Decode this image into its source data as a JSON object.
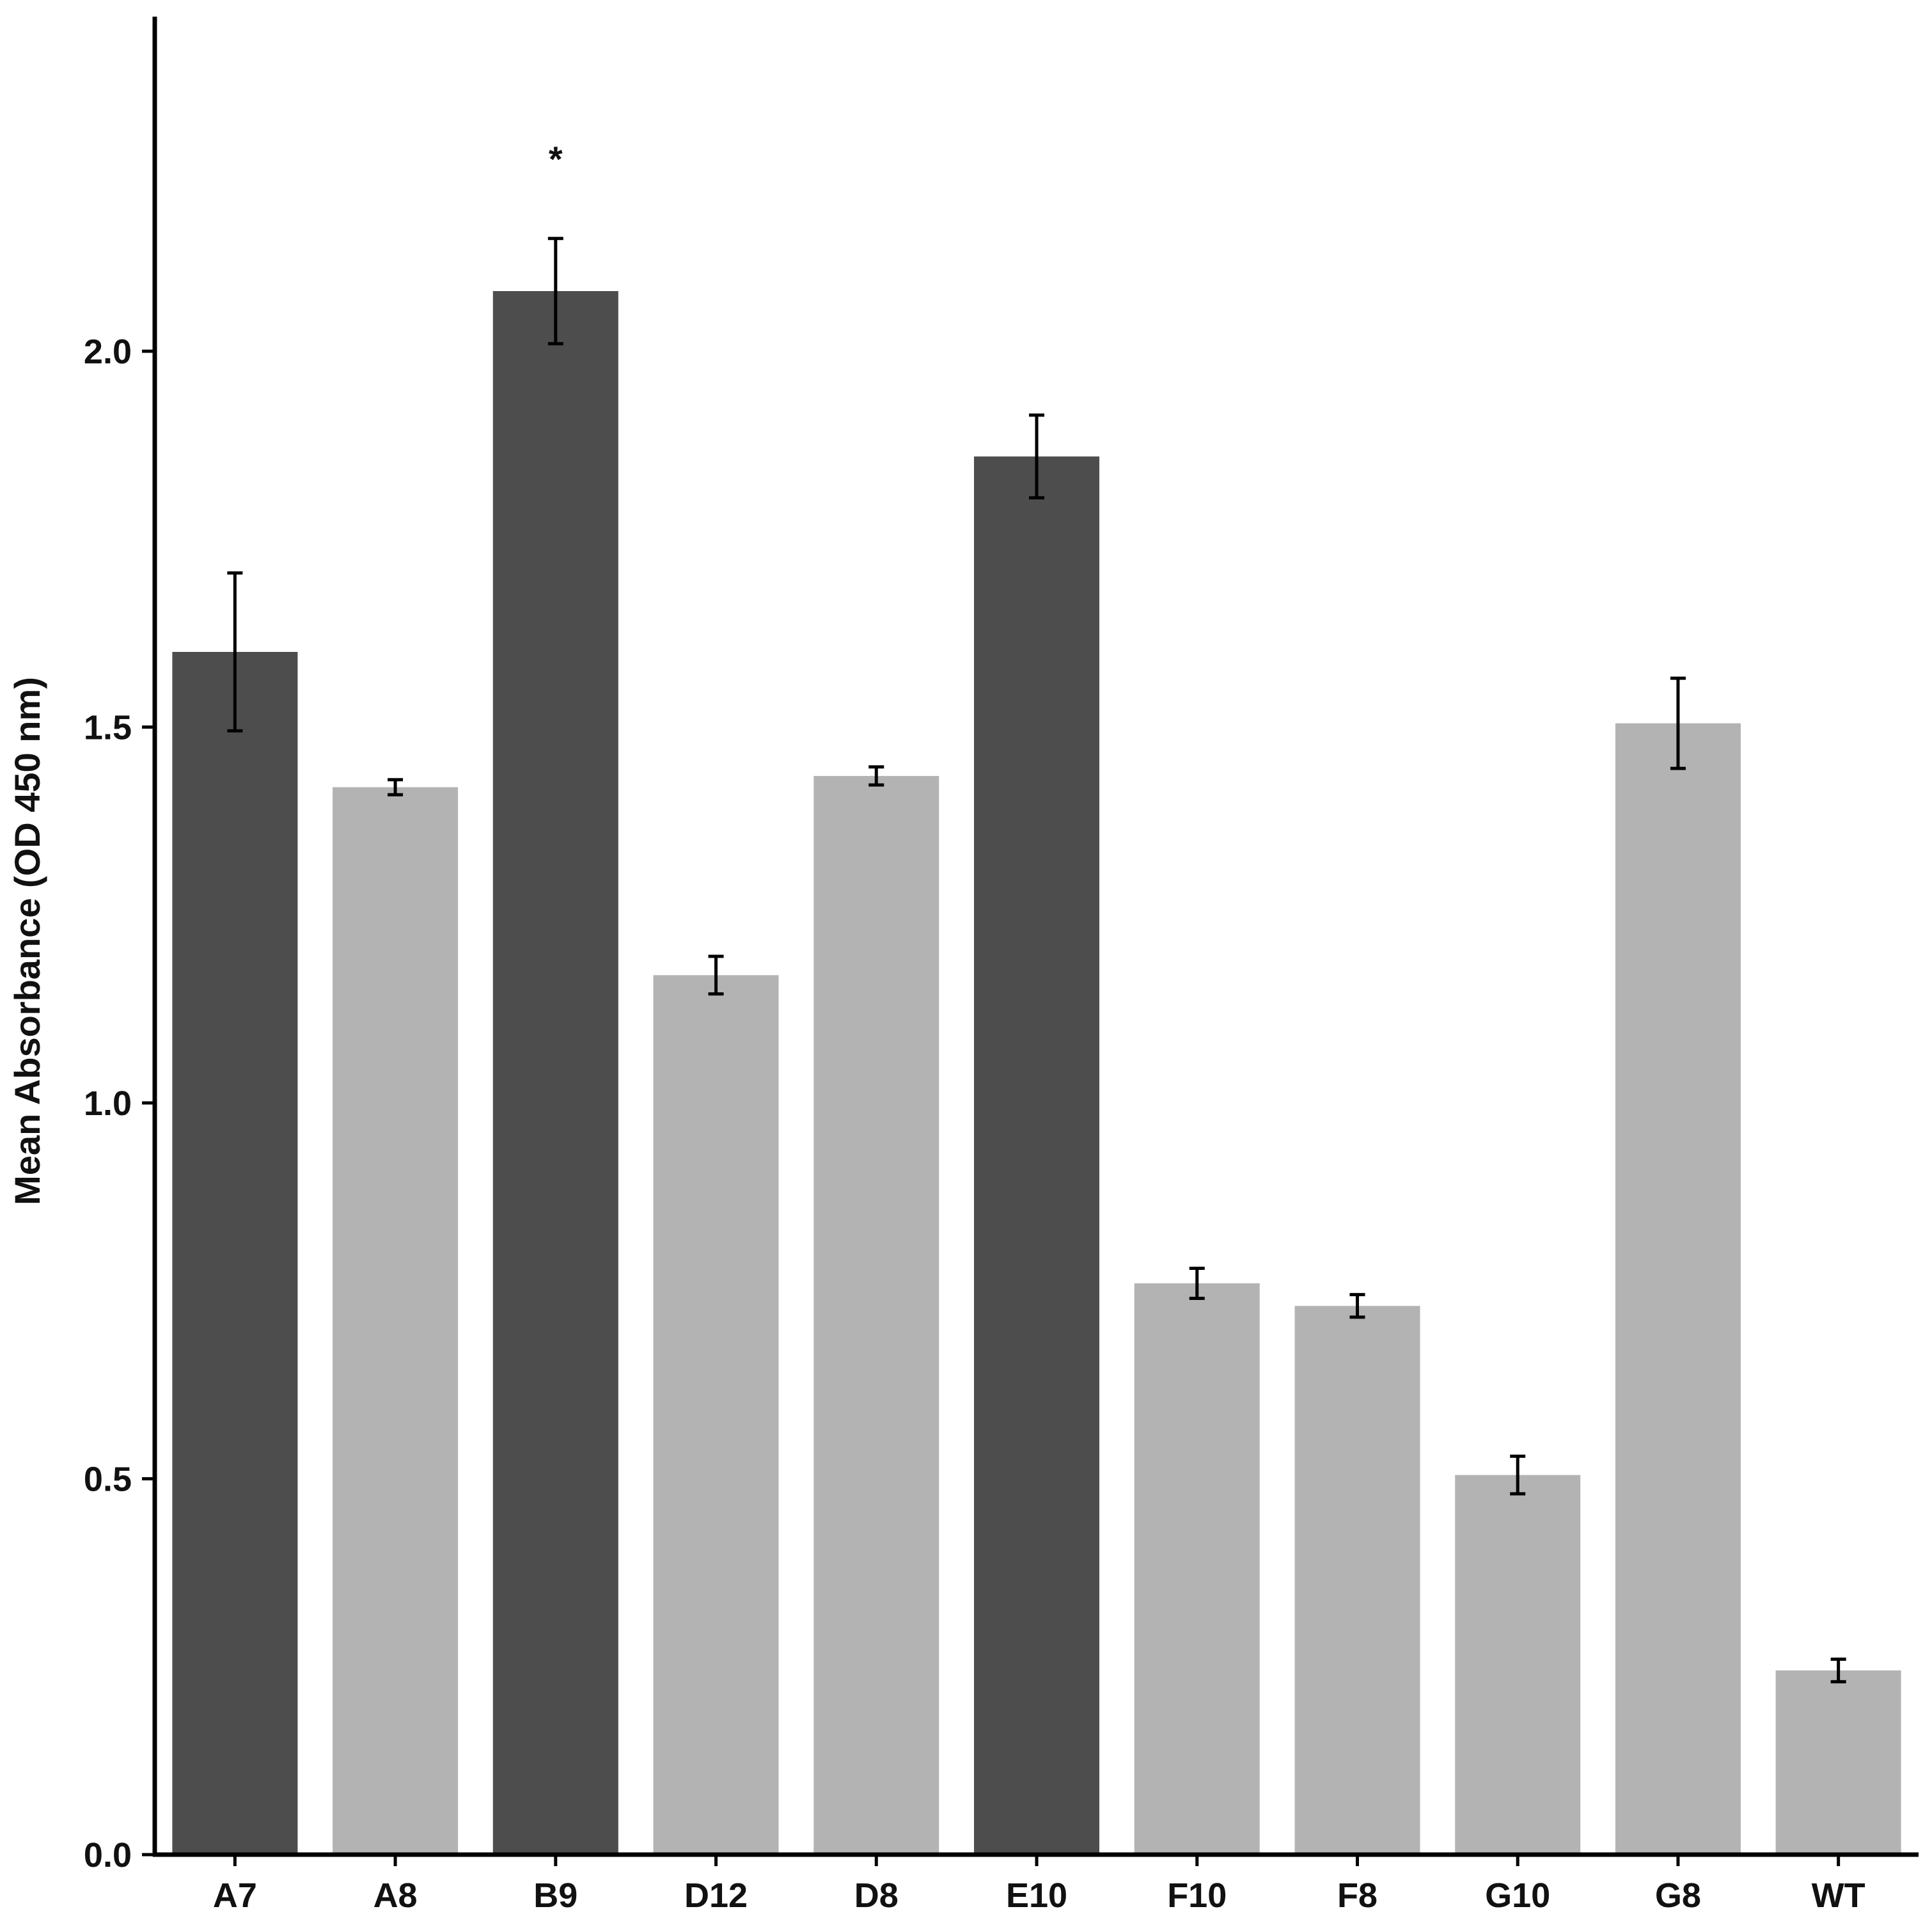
{
  "chart_data": {
    "type": "bar",
    "title": "",
    "xlabel": "",
    "ylabel": "Mean Absorbance (OD 450 nm)",
    "ylim": [
      0,
      2.4
    ],
    "yticks": [
      "0.0",
      "0.5",
      "1.0",
      "1.5",
      "2.0"
    ],
    "categories": [
      "A7",
      "A8",
      "B9",
      "D12",
      "D8",
      "E10",
      "F10",
      "F8",
      "G10",
      "G8",
      "WT"
    ],
    "values": [
      1.6,
      1.42,
      2.08,
      1.17,
      1.435,
      1.86,
      0.76,
      0.73,
      0.505,
      1.505,
      0.245
    ],
    "errors": [
      0.105,
      0.01,
      0.07,
      0.025,
      0.012,
      0.055,
      0.02,
      0.015,
      0.025,
      0.06,
      0.015
    ],
    "highlighted": [
      true,
      false,
      true,
      false,
      false,
      true,
      false,
      false,
      false,
      false,
      false
    ],
    "annotations": [
      {
        "category": "B9",
        "text": "*"
      }
    ],
    "grid": false,
    "legend": "none",
    "colors": {
      "highlight": "#4d4d4d",
      "default": "#b3b3b3",
      "axis": "#000000",
      "error_bar": "#000000"
    }
  }
}
